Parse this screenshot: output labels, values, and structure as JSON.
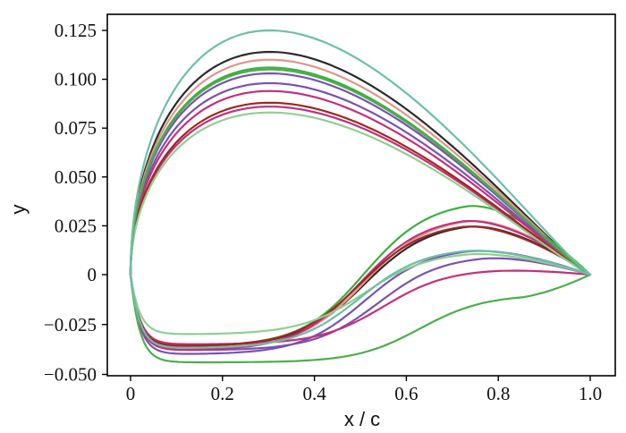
{
  "chart_data": {
    "type": "line",
    "xlabel": "x / c",
    "ylabel": "y",
    "xlim": [
      -0.05,
      1.02
    ],
    "ylim": [
      -0.052,
      0.135
    ],
    "xticks": [
      0,
      0.2,
      0.4,
      0.6,
      0.8,
      1.0
    ],
    "xtick_labels": [
      "0",
      "0.2",
      "0.4",
      "0.6",
      "0.8",
      "1.0"
    ],
    "yticks": [
      -0.05,
      -0.025,
      0,
      0.025,
      0.05,
      0.075,
      0.1,
      0.125
    ],
    "ytick_labels": [
      "−0.050",
      "−0.025",
      "0",
      "0.025",
      "0.050",
      "0.075",
      "0.100",
      "0.125"
    ],
    "grid": false,
    "legend": "none",
    "series": [
      {
        "color": "#2b2b2b",
        "upper_peak": 0.114,
        "upper_peak_x": 0.42,
        "lower_peak": 0.027,
        "lower_peak_x": 0.73,
        "lower_min": -0.036,
        "lower_min_x": 0.2
      },
      {
        "color": "#e0958a",
        "upper_peak": 0.11,
        "upper_peak_x": 0.42,
        "lower_peak": 0.03,
        "lower_peak_x": 0.73,
        "lower_min": -0.037,
        "lower_min_x": 0.2
      },
      {
        "color": "#3cae3c",
        "upper_peak": 0.106,
        "upper_peak_x": 0.38,
        "lower_peak": 0.038,
        "lower_peak_x": 0.73,
        "lower_min": -0.036,
        "lower_min_x": 0.2
      },
      {
        "color": "#7b52b0",
        "upper_peak": 0.103,
        "upper_peak_x": 0.38,
        "lower_peak": 0.014,
        "lower_peak_x": 0.73,
        "lower_min": -0.04,
        "lower_min_x": 0.2
      },
      {
        "color": "#7b52b0",
        "upper_peak": 0.098,
        "upper_peak_x": 0.36,
        "lower_peak": 0.01,
        "lower_peak_x": 0.76,
        "lower_min": -0.038,
        "lower_min_x": 0.2
      },
      {
        "color": "#c4307a",
        "upper_peak": 0.094,
        "upper_peak_x": 0.36,
        "lower_peak": 0.003,
        "lower_peak_x": 0.77,
        "lower_min": -0.035,
        "lower_min_x": 0.2
      },
      {
        "color": "#c4307a",
        "upper_peak": 0.086,
        "upper_peak_x": 0.35,
        "lower_peak": 0.03,
        "lower_peak_x": 0.72,
        "lower_min": -0.038,
        "lower_min_x": 0.2
      },
      {
        "color": "#9b2a22",
        "upper_peak": 0.088,
        "upper_peak_x": 0.35,
        "lower_peak": 0.027,
        "lower_peak_x": 0.72,
        "lower_min": -0.036,
        "lower_min_x": 0.2
      },
      {
        "color": "#8fcf8f",
        "upper_peak": 0.083,
        "upper_peak_x": 0.35,
        "lower_peak": 0.012,
        "lower_peak_x": 0.73,
        "lower_min": -0.03,
        "lower_min_x": 0.2
      },
      {
        "color": "#4cae4c",
        "upper_peak": 0.105,
        "upper_peak_x": 0.4,
        "lower_peak": -0.01,
        "lower_peak_x": 0.85,
        "lower_min": -0.044,
        "lower_min_x": 0.2
      },
      {
        "color": "#6cbfa8",
        "upper_peak": 0.125,
        "upper_peak_x": 0.42,
        "lower_peak": 0.014,
        "lower_peak_x": 0.72,
        "lower_min": -0.037,
        "lower_min_x": 0.2
      }
    ]
  }
}
